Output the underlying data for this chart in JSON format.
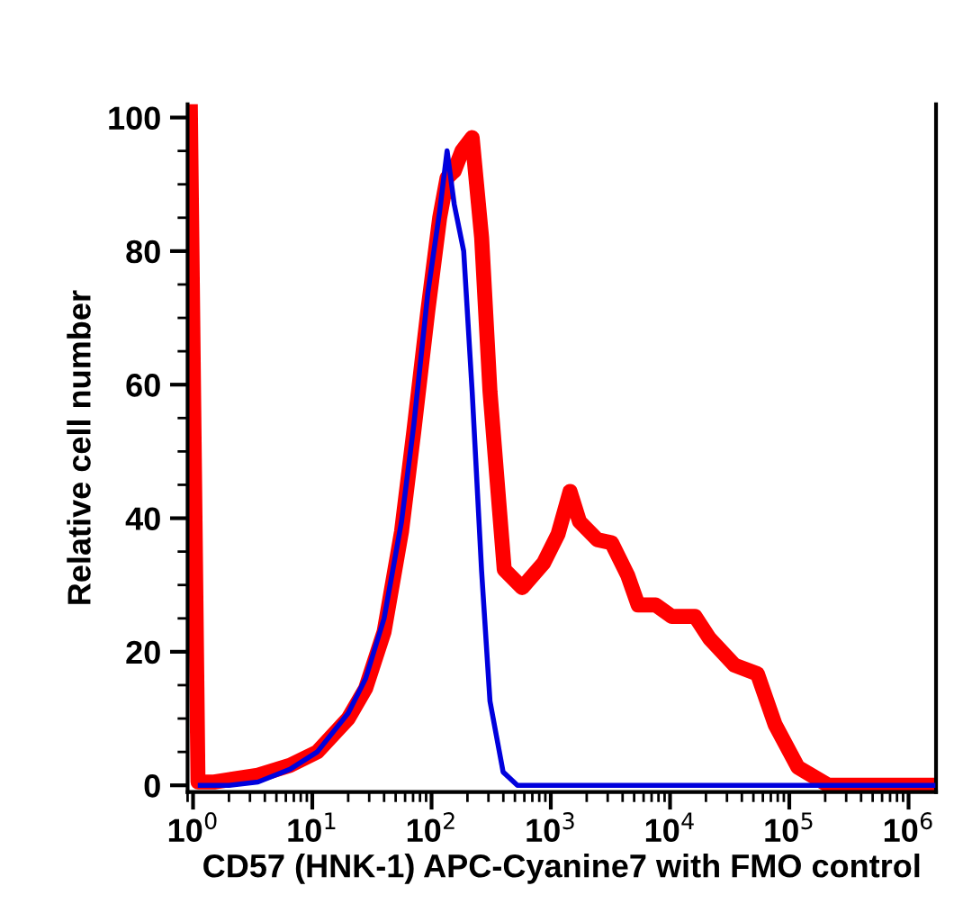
{
  "chart_data": {
    "type": "line",
    "xlabel": "CD57 (HNK-1) APC-Cyanine7 with FMO control",
    "ylabel": "Relative cell number",
    "log": "x",
    "xlim": [
      0.9,
      1700000
    ],
    "ylim": [
      -1,
      102
    ],
    "xticks": [
      {
        "value": 1,
        "label": "10$^{0}$"
      },
      {
        "value": 10,
        "label": "10$^{1}$"
      },
      {
        "value": 100,
        "label": "10$^{2}$"
      },
      {
        "value": 1000,
        "label": "10$^{3}$"
      },
      {
        "value": 10000,
        "label": "10$^{4}$"
      },
      {
        "value": 100000,
        "label": "10$^{5}$"
      },
      {
        "value": 1000000,
        "label": "10$^{6}$"
      }
    ],
    "yticks": [
      0,
      20,
      40,
      60,
      80,
      100
    ],
    "grid": false,
    "legend": false,
    "marker": "none",
    "line_style": "solid",
    "series": [
      {
        "color": "#ff0000",
        "x": [
          0.95,
          1.1,
          1.5,
          3.5,
          6.5,
          11,
          20,
          28,
          40,
          56,
          71,
          93,
          117,
          135,
          155,
          180,
          219,
          263,
          309,
          372,
          407,
          575,
          871,
          1150,
          1450,
          1740,
          2450,
          3240,
          4400,
          5400,
          7600,
          10300,
          16200,
          21400,
          34700,
          54000,
          76000,
          118000,
          213000,
          1600000
        ],
        "values": [
          101,
          0.5,
          0.5,
          1.5,
          3,
          5,
          10,
          14.5,
          23,
          38,
          53,
          71,
          85,
          91,
          92,
          95,
          97,
          82,
          59,
          41,
          32.3,
          29.6,
          33.3,
          37.6,
          44,
          39.5,
          36.8,
          36.3,
          31.5,
          27,
          27,
          25.3,
          25.3,
          22,
          18,
          16.7,
          9.1,
          2.7,
          0,
          0
        ]
      },
      {
        "color": "#0000dd",
        "x": [
          1.15,
          2.0,
          3.5,
          6.5,
          11,
          20,
          28,
          40,
          56,
          71,
          93,
          117,
          135,
          155,
          186,
          219,
          263,
          309,
          398,
          525,
          1600000
        ],
        "values": [
          0,
          0,
          0.5,
          2.4,
          5,
          10.8,
          16,
          25,
          39.5,
          54,
          73.7,
          86,
          95,
          87,
          80,
          59,
          32,
          12.6,
          2,
          0,
          0
        ]
      }
    ]
  }
}
